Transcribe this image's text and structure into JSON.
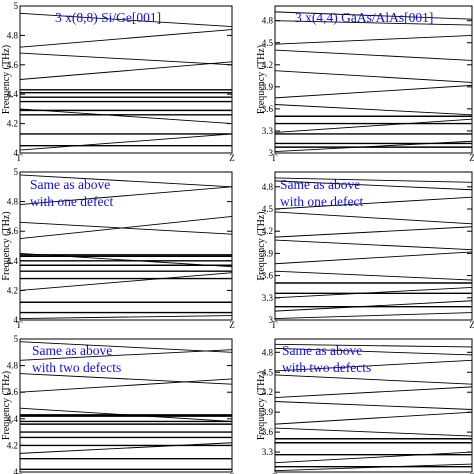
{
  "chart_data": [
    {
      "type": "line",
      "title": "3 x(8,8) Si/Ge[001]",
      "ylabel": "Frequency (THz)",
      "ylim": [
        4.0,
        5.0
      ],
      "yticks": [
        "4",
        "4.2",
        "4.4",
        "4.6",
        "4.8",
        "5"
      ],
      "xticks": [
        "Γ",
        "Z"
      ],
      "annotation": [
        "3 x(8,8) Si/Ge[001]"
      ],
      "series": [
        {
          "x": [
            0,
            1
          ],
          "y": [
            4.05,
            4.05
          ]
        },
        {
          "x": [
            0,
            1
          ],
          "y": [
            4.13,
            4.13
          ]
        },
        {
          "x": [
            0,
            1
          ],
          "y": [
            4.26,
            4.26
          ]
        },
        {
          "x": [
            0,
            1
          ],
          "y": [
            4.29,
            4.29
          ]
        },
        {
          "x": [
            0,
            1
          ],
          "y": [
            4.35,
            4.35
          ]
        },
        {
          "x": [
            0,
            1
          ],
          "y": [
            4.38,
            4.38
          ]
        },
        {
          "x": [
            0,
            1
          ],
          "y": [
            4.41,
            4.41
          ]
        },
        {
          "x": [
            0,
            1
          ],
          "y": [
            4.43,
            4.43
          ]
        },
        {
          "x": [
            0,
            1
          ],
          "y": [
            4.02,
            4.13
          ]
        },
        {
          "x": [
            0,
            1
          ],
          "y": [
            4.3,
            4.2
          ]
        },
        {
          "x": [
            0,
            1
          ],
          "y": [
            4.5,
            4.62
          ]
        },
        {
          "x": [
            0,
            1
          ],
          "y": [
            4.68,
            4.6
          ]
        },
        {
          "x": [
            0,
            1
          ],
          "y": [
            4.72,
            4.84
          ]
        },
        {
          "x": [
            0,
            1
          ],
          "y": [
            4.95,
            4.86
          ]
        }
      ]
    },
    {
      "type": "line",
      "title": "3 x(4,4) GaAs/AlAs[001]",
      "ylabel": "Frequency (THz)",
      "ylim": [
        3.0,
        5.0
      ],
      "yticks": [
        "3",
        "3.3",
        "3.6",
        "3.9",
        "4.2",
        "4.5",
        "4.8"
      ],
      "xticks": [
        "Γ",
        "Z"
      ],
      "annotation": [
        "3 x(4,4) GaAs/AlAs[001]"
      ],
      "series": [
        {
          "x": [
            0,
            1
          ],
          "y": [
            3.08,
            3.08
          ]
        },
        {
          "x": [
            0,
            1
          ],
          "y": [
            3.13,
            3.13
          ]
        },
        {
          "x": [
            0,
            1
          ],
          "y": [
            3.26,
            3.26
          ]
        },
        {
          "x": [
            0,
            1
          ],
          "y": [
            3.4,
            3.4
          ]
        },
        {
          "x": [
            0,
            1
          ],
          "y": [
            3.5,
            3.5
          ]
        },
        {
          "x": [
            0,
            1
          ],
          "y": [
            3.02,
            3.16
          ]
        },
        {
          "x": [
            0,
            1
          ],
          "y": [
            3.28,
            3.46
          ]
        },
        {
          "x": [
            0,
            1
          ],
          "y": [
            3.66,
            3.52
          ]
        },
        {
          "x": [
            0,
            1
          ],
          "y": [
            3.75,
            3.92
          ]
        },
        {
          "x": [
            0,
            1
          ],
          "y": [
            4.12,
            3.96
          ]
        },
        {
          "x": [
            0,
            1
          ],
          "y": [
            4.4,
            4.26
          ]
        },
        {
          "x": [
            0,
            1
          ],
          "y": [
            4.48,
            4.6
          ]
        },
        {
          "x": [
            0,
            1
          ],
          "y": [
            4.8,
            4.74
          ]
        },
        {
          "x": [
            0,
            1
          ],
          "y": [
            4.92,
            4.82
          ]
        }
      ]
    },
    {
      "type": "line",
      "title": "",
      "ylabel": "Frequency (THz)",
      "ylim": [
        4.0,
        5.0
      ],
      "yticks": [
        "4",
        "4.2",
        "4.4",
        "4.6",
        "4.8",
        "5"
      ],
      "xticks": [
        "Γ",
        "Z"
      ],
      "annotation": [
        "Same as above",
        "with one defect"
      ],
      "series": [
        {
          "x": [
            0,
            1
          ],
          "y": [
            4.05,
            4.05
          ]
        },
        {
          "x": [
            0,
            1
          ],
          "y": [
            4.12,
            4.12
          ]
        },
        {
          "x": [
            0,
            1
          ],
          "y": [
            4.28,
            4.28
          ]
        },
        {
          "x": [
            0,
            1
          ],
          "y": [
            4.33,
            4.33
          ]
        },
        {
          "x": [
            0,
            1
          ],
          "y": [
            4.37,
            4.37
          ]
        },
        {
          "x": [
            0,
            1
          ],
          "y": [
            4.4,
            4.4
          ]
        },
        {
          "x": [
            0,
            1
          ],
          "y": [
            4.43,
            4.43
          ]
        },
        {
          "x": [
            0,
            1
          ],
          "y": [
            4.44,
            4.44
          ]
        },
        {
          "x": [
            0,
            1
          ],
          "y": [
            4.01,
            4.03
          ]
        },
        {
          "x": [
            0,
            1
          ],
          "y": [
            4.2,
            4.32
          ]
        },
        {
          "x": [
            0,
            1
          ],
          "y": [
            4.45,
            4.36
          ]
        },
        {
          "x": [
            0,
            1
          ],
          "y": [
            4.55,
            4.7
          ]
        },
        {
          "x": [
            0,
            1
          ],
          "y": [
            4.66,
            4.58
          ]
        },
        {
          "x": [
            0,
            1
          ],
          "y": [
            4.78,
            4.9
          ]
        },
        {
          "x": [
            0,
            1
          ],
          "y": [
            4.98,
            4.9
          ]
        }
      ]
    },
    {
      "type": "line",
      "title": "",
      "ylabel": "Frequency (THz)",
      "ylim": [
        3.0,
        5.0
      ],
      "yticks": [
        "3",
        "3.3",
        "3.6",
        "3.9",
        "4.2",
        "4.5",
        "4.8"
      ],
      "xticks": [
        "Γ",
        "Z"
      ],
      "annotation": [
        "Same as above",
        "with one defect"
      ],
      "series": [
        {
          "x": [
            0,
            1
          ],
          "y": [
            3.18,
            3.18
          ]
        },
        {
          "x": [
            0,
            1
          ],
          "y": [
            3.36,
            3.36
          ]
        },
        {
          "x": [
            0,
            1
          ],
          "y": [
            3.5,
            3.5
          ]
        },
        {
          "x": [
            0,
            1
          ],
          "y": [
            3.02,
            3.1
          ]
        },
        {
          "x": [
            0,
            1
          ],
          "y": [
            3.12,
            3.26
          ]
        },
        {
          "x": [
            0,
            1
          ],
          "y": [
            3.3,
            3.44
          ]
        },
        {
          "x": [
            0,
            1
          ],
          "y": [
            3.66,
            3.54
          ]
        },
        {
          "x": [
            0,
            1
          ],
          "y": [
            3.76,
            3.92
          ]
        },
        {
          "x": [
            0,
            1
          ],
          "y": [
            4.08,
            3.95
          ]
        },
        {
          "x": [
            0,
            1
          ],
          "y": [
            4.12,
            4.26
          ]
        },
        {
          "x": [
            0,
            1
          ],
          "y": [
            4.46,
            4.3
          ]
        },
        {
          "x": [
            0,
            1
          ],
          "y": [
            4.5,
            4.66
          ]
        },
        {
          "x": [
            0,
            1
          ],
          "y": [
            4.88,
            4.76
          ]
        },
        {
          "x": [
            0,
            1
          ],
          "y": [
            4.92,
            4.86
          ]
        }
      ]
    },
    {
      "type": "line",
      "title": "",
      "ylabel": "Frequency (THz)",
      "ylim": [
        4.0,
        5.0
      ],
      "yticks": [
        "4",
        "4.2",
        "4.4",
        "4.6",
        "4.8",
        "5"
      ],
      "xticks": [
        "Γ",
        "Z"
      ],
      "annotation": [
        "Same as above",
        "with two defects"
      ],
      "series": [
        {
          "x": [
            0,
            1
          ],
          "y": [
            4.02,
            4.02
          ]
        },
        {
          "x": [
            0,
            1
          ],
          "y": [
            4.1,
            4.1
          ]
        },
        {
          "x": [
            0,
            1
          ],
          "y": [
            4.2,
            4.2
          ]
        },
        {
          "x": [
            0,
            1
          ],
          "y": [
            4.26,
            4.26
          ]
        },
        {
          "x": [
            0,
            1
          ],
          "y": [
            4.3,
            4.3
          ]
        },
        {
          "x": [
            0,
            1
          ],
          "y": [
            4.36,
            4.36
          ]
        },
        {
          "x": [
            0,
            1
          ],
          "y": [
            4.38,
            4.38
          ]
        },
        {
          "x": [
            0,
            1
          ],
          "y": [
            4.42,
            4.42
          ]
        },
        {
          "x": [
            0,
            1
          ],
          "y": [
            4.43,
            4.43
          ]
        },
        {
          "x": [
            0,
            1
          ],
          "y": [
            4.14,
            4.22
          ]
        },
        {
          "x": [
            0,
            1
          ],
          "y": [
            4.48,
            4.38
          ]
        },
        {
          "x": [
            0,
            1
          ],
          "y": [
            4.6,
            4.7
          ]
        },
        {
          "x": [
            0,
            1
          ],
          "y": [
            4.74,
            4.66
          ]
        },
        {
          "x": [
            0,
            1
          ],
          "y": [
            4.84,
            4.92
          ]
        },
        {
          "x": [
            0,
            1
          ],
          "y": [
            4.98,
            4.9
          ]
        }
      ]
    },
    {
      "type": "line",
      "title": "",
      "ylabel": "Frequency (THz)",
      "ylim": [
        3.0,
        5.0
      ],
      "yticks": [
        "3.3",
        "3.6",
        "3.9",
        "4.2",
        "4.5",
        "4.8"
      ],
      "xticks": [
        "Γ",
        "Z"
      ],
      "annotation": [
        "Same as above",
        "with two defects"
      ],
      "series": [
        {
          "x": [
            0,
            1
          ],
          "y": [
            3.08,
            3.08
          ]
        },
        {
          "x": [
            0,
            1
          ],
          "y": [
            3.26,
            3.26
          ]
        },
        {
          "x": [
            0,
            1
          ],
          "y": [
            3.44,
            3.44
          ]
        },
        {
          "x": [
            0,
            1
          ],
          "y": [
            3.5,
            3.5
          ]
        },
        {
          "x": [
            0,
            1
          ],
          "y": [
            3.02,
            3.12
          ]
        },
        {
          "x": [
            0,
            1
          ],
          "y": [
            3.14,
            3.3
          ]
        },
        {
          "x": [
            0,
            1
          ],
          "y": [
            3.66,
            3.54
          ]
        },
        {
          "x": [
            0,
            1
          ],
          "y": [
            3.72,
            3.9
          ]
        },
        {
          "x": [
            0,
            1
          ],
          "y": [
            4.06,
            3.94
          ]
        },
        {
          "x": [
            0,
            1
          ],
          "y": [
            4.12,
            4.28
          ]
        },
        {
          "x": [
            0,
            1
          ],
          "y": [
            4.46,
            4.32
          ]
        },
        {
          "x": [
            0,
            1
          ],
          "y": [
            4.52,
            4.68
          ]
        },
        {
          "x": [
            0,
            1
          ],
          "y": [
            4.86,
            4.76
          ]
        },
        {
          "x": [
            0,
            1
          ],
          "y": [
            4.92,
            4.88
          ]
        }
      ]
    }
  ]
}
